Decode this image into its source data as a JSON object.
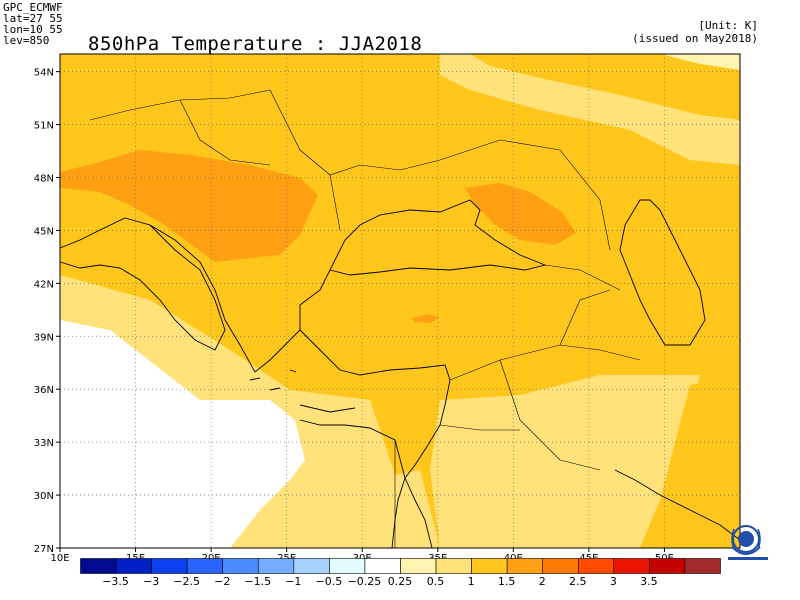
{
  "header": {
    "model": "GPC_ECMWF",
    "lat": "lat=27 55",
    "lon": "lon=10 55",
    "lev": "lev=850",
    "title": "850hPa Temperature : JJA2018",
    "unit": "[Unit: K]",
    "issued": "(issued on May2018)"
  },
  "map": {
    "lat_ticks": [
      "54N",
      "51N",
      "48N",
      "45N",
      "42N",
      "39N",
      "36N",
      "33N",
      "30N",
      "27N"
    ],
    "lat_values": [
      54,
      51,
      48,
      45,
      42,
      39,
      36,
      33,
      30,
      27
    ],
    "lon_ticks": [
      "10E",
      "15E",
      "20E",
      "25E",
      "30E",
      "35E",
      "40E",
      "45E",
      "50E"
    ],
    "lon_values": [
      10,
      15,
      20,
      25,
      30,
      35,
      40,
      45,
      50
    ],
    "lon_range": [
      10,
      55
    ],
    "lat_range": [
      27,
      55
    ]
  },
  "colorbar": {
    "colors": [
      "#000b8f",
      "#0020c6",
      "#0a40f0",
      "#2a64ff",
      "#4a8aff",
      "#72adff",
      "#a6d2ff",
      "#e2fbff",
      "#ffffff",
      "#fff3b0",
      "#ffe27a",
      "#ffc71c",
      "#ff9f12",
      "#ff7a00",
      "#ff4a00",
      "#ee1500",
      "#c50000",
      "#a52a2a"
    ],
    "labels": [
      "−3.5",
      "−3",
      "−2.5",
      "−2",
      "−1.5",
      "−1",
      "−0.5",
      "−0.25",
      "0.25",
      "0.5",
      "1",
      "1.5",
      "2",
      "2.5",
      "3",
      "3.5"
    ]
  },
  "logo": {
    "icon": "wmo-emblem-icon",
    "color": "#1f4fa8"
  }
}
